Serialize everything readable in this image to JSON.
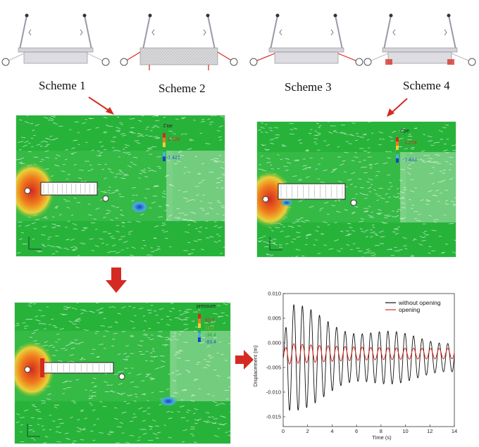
{
  "schemes": {
    "labels": [
      "Scheme 1",
      "Scheme 2",
      "Scheme 3",
      "Scheme 4"
    ]
  },
  "panels": {
    "scheme1": {
      "legend_title": "Cpe",
      "legend_max": "1.409",
      "legend_min": "-1.421"
    },
    "scheme4": {
      "legend_title": "Cpe",
      "legend_max": "1.274",
      "legend_min": "-1.433"
    },
    "pressure": {
      "legend_title": "pressure",
      "legend_values": [
        "63.5",
        "11.7",
        "-34.4",
        "-83.4"
      ]
    }
  },
  "colors": {
    "arrow": "#d42a22",
    "without_opening": "#111111",
    "opening": "#d42a22",
    "flow_bg": "#27b33a"
  },
  "chart_data": {
    "type": "line",
    "xlabel": "Time (s)",
    "ylabel": "Displacement (m)",
    "xlim": [
      0,
      14
    ],
    "ylim": [
      -0.017,
      0.01
    ],
    "xticks": [
      0,
      2,
      4,
      6,
      8,
      10,
      12,
      14
    ],
    "yticks": [
      0.01,
      0.005,
      0.0,
      -0.005,
      -0.01,
      -0.015
    ],
    "ytick_labels": [
      "0.010",
      "0.005",
      "0.000",
      "-0.005",
      "-0.010",
      "-0.015"
    ],
    "legend_position": "top-right",
    "series": [
      {
        "name": "without opening",
        "color": "#111111",
        "frequency_hz": 1.43,
        "mean": -0.003,
        "start_amplitude": 0.0105,
        "end_amplitude": 0.0025
      },
      {
        "name": "opening",
        "color": "#d42a22",
        "frequency_hz": 1.43,
        "mean": -0.0022,
        "start_amplitude": 0.0022,
        "end_amplitude": 0.0012
      }
    ]
  }
}
